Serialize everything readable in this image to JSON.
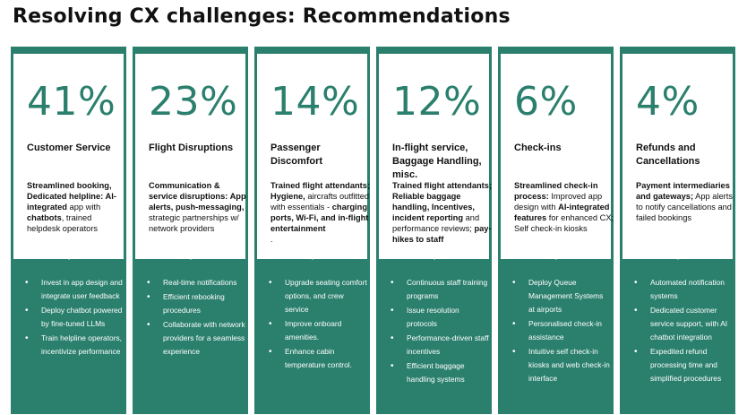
{
  "title": "Resolving CX challenges: Recommendations",
  "columns": [
    {
      "percent": "41%",
      "category": "Customer Service",
      "desc_html": "<b>Streamlined booking, Dedicated helpline: AI-integrated</b> app with <b>chatbots</b>, trained helpdesk operators",
      "bullets": [
        "Invest in app design and integrate user feedback",
        "Deploy chatbot powered by fine-tuned LLMs",
        "Train helpline operators, incentivize performance"
      ]
    },
    {
      "percent": "23%",
      "category": "Flight Disruptions",
      "desc_html": "<b>Communication & service disruptions: App alerts, push-messaging,</b> strategic partnerships w/ network providers",
      "bullets": [
        "Real-time notifications",
        "Efficient rebooking procedures",
        "Collaborate with network providers for a seamless experience"
      ]
    },
    {
      "percent": "14%",
      "category": "Passenger Discomfort",
      "desc_html": "<b>Trained flight attendants; Hygiene,</b> aircrafts outfitted with essentials - <b>charging ports, Wi-Fi, and in-flight entertainment</b><br>.",
      "bullets": [
        "Upgrade seating comfort options, and crew service",
        "Improve onboard amenities.",
        "Enhance cabin temperature control."
      ]
    },
    {
      "percent": "12%",
      "category": "In-flight service, Baggage Handling, misc.",
      "desc_html": "<b>Trained flight attendants; Reliable baggage handling, Incentives, incident reporting</b> and performance reviews; <b>pay-hikes to staff</b>",
      "bullets": [
        "Continuous staff training programs",
        "Issue resolution protocols",
        "Performance-driven staff incentives",
        "Efficient baggage handling systems"
      ]
    },
    {
      "percent": "6%",
      "category": "Check-ins",
      "desc_html": "<b>Streamlined check-in process:</b> Improved app design with <b>AI-integrated features</b> for enhanced CX; Self check-in kiosks",
      "bullets": [
        "Deploy Queue Management Systems at airports",
        "Personalised check-in assistance",
        "Intuitive self check-in kiosks and web check-in interface"
      ]
    },
    {
      "percent": "4%",
      "category": "Refunds and Cancellations",
      "desc_html": "<b>Payment intermediaries and gateways;</b> App alerts to notify cancellations and failed bookings",
      "bullets": [
        "Automated notification systems",
        "Dedicated customer service support, with AI chatbot integration",
        "Expedited refund processing time and simplified procedures"
      ]
    }
  ],
  "colors": {
    "teal": "#2a7f6d",
    "card": "#ffffff",
    "text": "#111111"
  }
}
